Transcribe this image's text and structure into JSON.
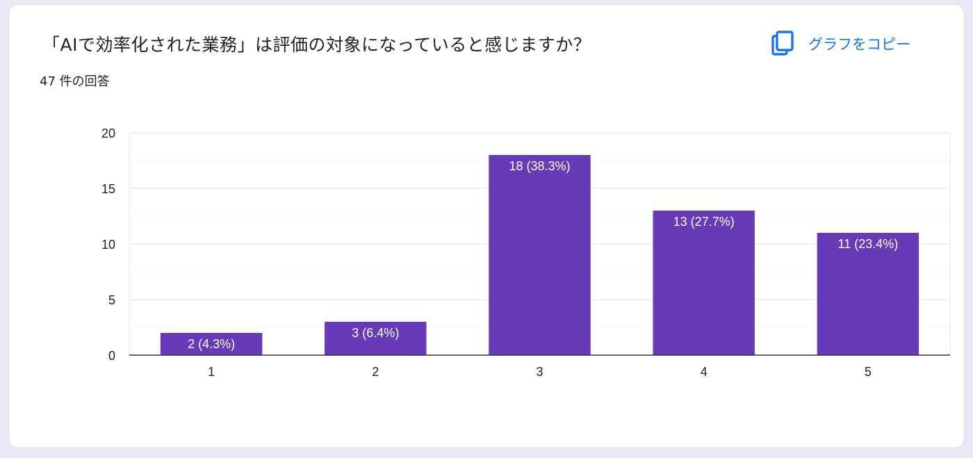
{
  "question": {
    "title": "「AIで効率化された業務」は評価の対象になっていると感じますか？",
    "response_count": "47 件の回答"
  },
  "toolbar": {
    "copy_label": "グラフをコピー",
    "copy_icon": "copy-icon"
  },
  "colors": {
    "bar": "#673ab7",
    "accent": "#1a73e8",
    "grid": "#e6e6e6",
    "axis": "#333333"
  },
  "chart_data": {
    "type": "bar",
    "categories": [
      "1",
      "2",
      "3",
      "4",
      "5"
    ],
    "values": [
      2,
      3,
      18,
      13,
      11
    ],
    "data_labels": [
      "2 (4.3%)",
      "3 (6.4%)",
      "18 (38.3%)",
      "13 (27.7%)",
      "11 (23.4%)"
    ],
    "ylim": [
      0,
      20
    ],
    "y_ticks": [
      "0",
      "5",
      "10",
      "15",
      "20"
    ],
    "grid": true,
    "legend": "none"
  }
}
